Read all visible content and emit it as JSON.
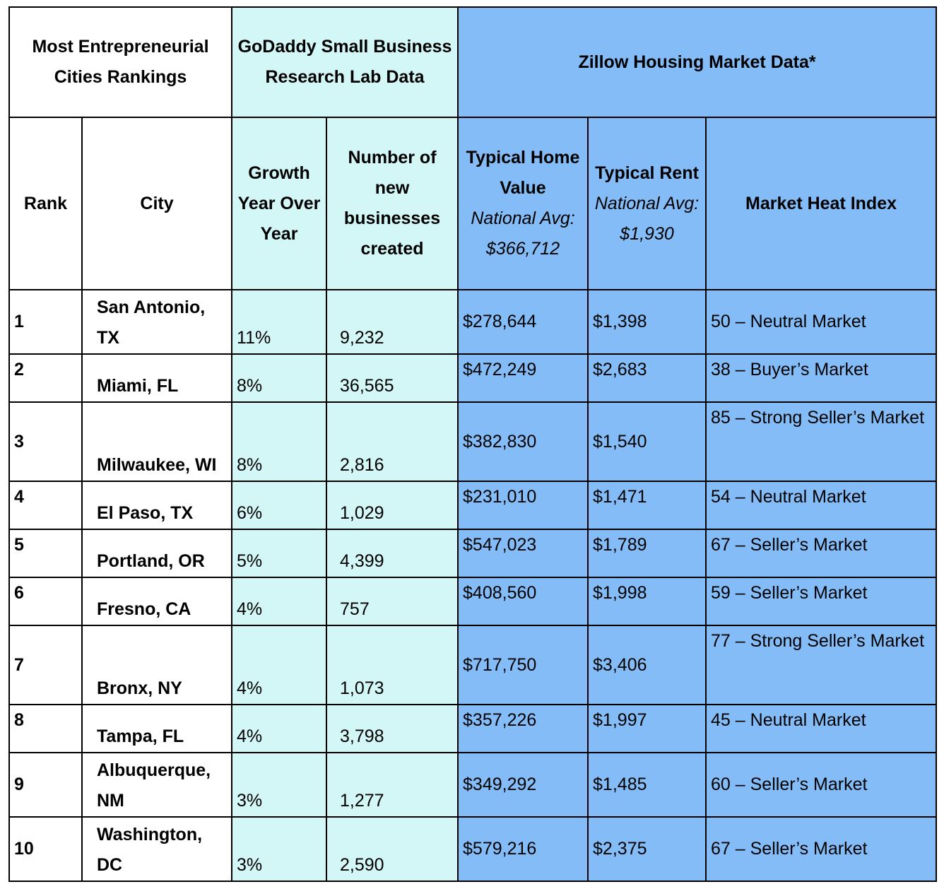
{
  "header": {
    "group_rankings": "Most Entrepreneurial Cities Rankings",
    "group_godaddy": "GoDaddy Small Business Research Lab Data",
    "group_zillow": "Zillow Housing Market Data*"
  },
  "columns": {
    "rank": "Rank",
    "city": "City",
    "growth": "Growth Year Over Year",
    "new_businesses": "Number of new businesses created",
    "home_value": "Typical Home Value",
    "home_value_note": "National Avg: $366,712",
    "rent": "Typical Rent",
    "rent_note": "National Avg: $1,930",
    "heat": "Market Heat Index"
  },
  "rows": [
    {
      "rank": "1",
      "city": "San Antonio, TX",
      "growth": "11%",
      "new": "9,232",
      "home": "$278,644",
      "rent": "$1,398",
      "heat": "50 – Neutral Market"
    },
    {
      "rank": "2",
      "city": "Miami, FL",
      "growth": "8%",
      "new": "36,565",
      "home": "$472,249",
      "rent": "$2,683",
      "heat": "38 – Buyer’s Market"
    },
    {
      "rank": "3",
      "city": "Milwaukee, WI",
      "growth": "8%",
      "new": "2,816",
      "home": "$382,830",
      "rent": "$1,540",
      "heat": "85 – Strong Seller’s Market"
    },
    {
      "rank": "4",
      "city": "El Paso, TX",
      "growth": "6%",
      "new": "1,029",
      "home": "$231,010",
      "rent": "$1,471",
      "heat": "54 – Neutral Market"
    },
    {
      "rank": "5",
      "city": "Portland, OR",
      "growth": "5%",
      "new": "4,399",
      "home": "$547,023",
      "rent": "$1,789",
      "heat": "67 – Seller’s Market"
    },
    {
      "rank": "6",
      "city": "Fresno, CA",
      "growth": "4%",
      "new": "757",
      "home": "$408,560",
      "rent": "$1,998",
      "heat": "59 – Seller’s Market"
    },
    {
      "rank": "7",
      "city": "Bronx, NY",
      "growth": "4%",
      "new": "1,073",
      "home": "$717,750",
      "rent": "$3,406",
      "heat": "77 – Strong Seller’s Market"
    },
    {
      "rank": "8",
      "city": "Tampa, FL",
      "growth": "4%",
      "new": "3,798",
      "home": "$357,226",
      "rent": "$1,997",
      "heat": "45 – Neutral Market"
    },
    {
      "rank": "9",
      "city": "Albuquerque, NM",
      "growth": "3%",
      "new": "1,277",
      "home": "$349,292",
      "rent": "$1,485",
      "heat": "60 – Seller’s Market"
    },
    {
      "rank": "10",
      "city": "Washington, DC",
      "growth": "3%",
      "new": "2,590",
      "home": "$579,216",
      "rent": "$2,375",
      "heat": "67 – Seller’s Market"
    }
  ]
}
